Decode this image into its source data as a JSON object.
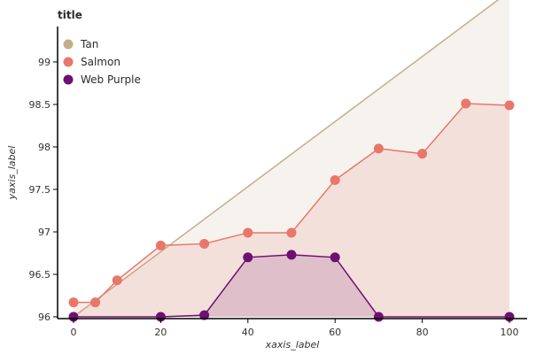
{
  "chart_data": {
    "type": "area",
    "title": "title",
    "xlabel": "xaxis_label",
    "ylabel": "yaxis_label",
    "xlim": [
      0,
      100
    ],
    "ylim": [
      96,
      99.9
    ],
    "x_ticks": [
      0,
      20,
      40,
      60,
      80,
      100
    ],
    "y_ticks": [
      96,
      96.5,
      97,
      97.5,
      98,
      98.5,
      99
    ],
    "grid": false,
    "legend_position": "top-left",
    "series": [
      {
        "name": "Tan",
        "color": "#c4ae8a",
        "points": [
          [
            0,
            96.0
          ],
          [
            100,
            99.83
          ]
        ]
      },
      {
        "name": "Salmon",
        "color": "#e8776a",
        "points": [
          [
            0,
            96.17
          ],
          [
            5,
            96.17
          ],
          [
            10,
            96.43
          ],
          [
            20,
            96.84
          ],
          [
            30,
            96.86
          ],
          [
            40,
            96.99
          ],
          [
            50,
            96.99
          ],
          [
            60,
            97.61
          ],
          [
            70,
            97.98
          ],
          [
            80,
            97.92
          ],
          [
            90,
            98.51
          ],
          [
            100,
            98.49
          ]
        ]
      },
      {
        "name": "Web Purple",
        "color": "#6e0f72",
        "points": [
          [
            0,
            96.0
          ],
          [
            20,
            96.0
          ],
          [
            30,
            96.02
          ],
          [
            40,
            96.7
          ],
          [
            50,
            96.73
          ],
          [
            60,
            96.7
          ],
          [
            70,
            96.0
          ],
          [
            100,
            96.0
          ]
        ]
      }
    ]
  }
}
